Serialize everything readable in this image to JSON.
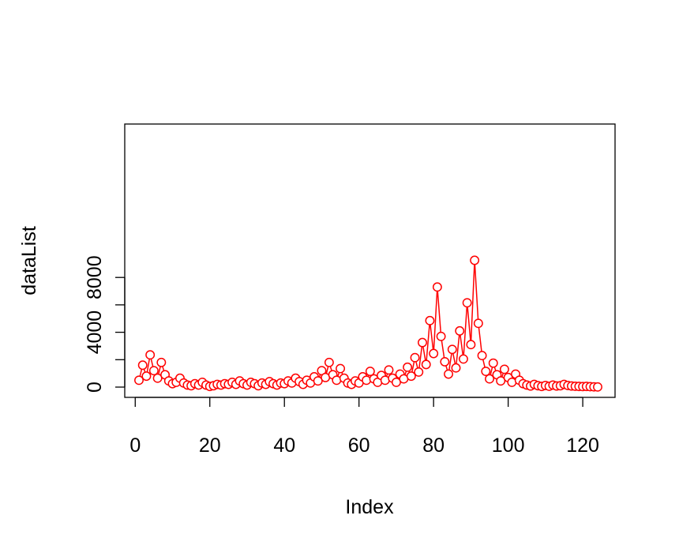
{
  "chart_data": {
    "type": "line",
    "title": "",
    "xlabel": "Index",
    "ylabel": "dataList",
    "xlim": [
      0,
      124
    ],
    "ylim": [
      0,
      9300
    ],
    "x_ticks": [
      0,
      20,
      40,
      60,
      80,
      100,
      120
    ],
    "y_ticks": [
      0,
      4000,
      8000
    ],
    "grid": false,
    "color": "#ff0000",
    "marker": "open-circle",
    "series": [
      {
        "values": [
          500,
          1600,
          800,
          2350,
          1200,
          650,
          1800,
          900,
          450,
          250,
          350,
          650,
          300,
          150,
          100,
          250,
          150,
          350,
          150,
          50,
          100,
          200,
          150,
          250,
          200,
          350,
          200,
          450,
          250,
          150,
          350,
          250,
          100,
          300,
          200,
          400,
          250,
          150,
          300,
          250,
          450,
          300,
          650,
          400,
          200,
          500,
          300,
          750,
          450,
          1200,
          700,
          1800,
          900,
          500,
          1350,
          650,
          300,
          200,
          450,
          300,
          750,
          500,
          1150,
          600,
          350,
          850,
          500,
          1250,
          650,
          350,
          950,
          600,
          1450,
          800,
          2150,
          1100,
          3250,
          1650,
          4850,
          2450,
          7300,
          3700,
          1850,
          950,
          2750,
          1400,
          4100,
          2050,
          6150,
          3100,
          9250,
          4650,
          2300,
          1150,
          600,
          1750,
          900,
          450,
          1300,
          700,
          350,
          950,
          500,
          250,
          150,
          80,
          200,
          100,
          50,
          120,
          60,
          150,
          80,
          100,
          200,
          120,
          80,
          60,
          50,
          40,
          50,
          30,
          20,
          10
        ]
      }
    ]
  }
}
